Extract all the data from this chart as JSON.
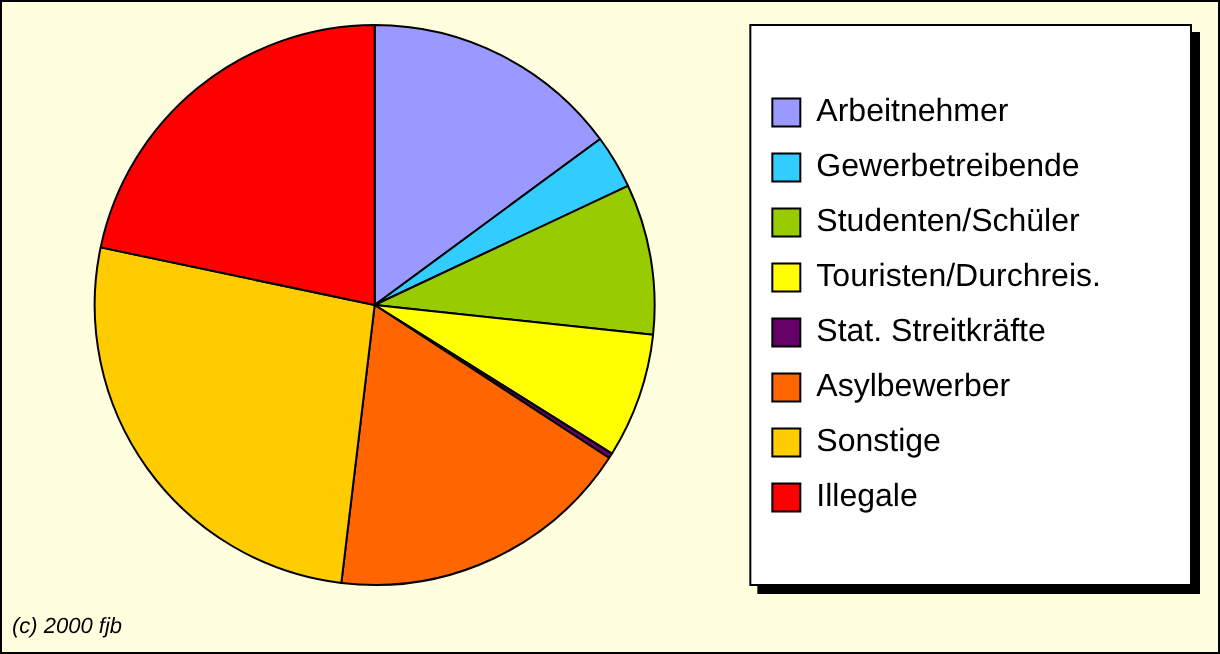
{
  "chart_data": {
    "type": "pie",
    "categories": [
      "Arbeitnehmer",
      "Gewerbetreibende",
      "Studenten/Schüler",
      "Touristen/Durchreis.",
      "Stat. Streitkräfte",
      "Asylbewerber",
      "Sonstige",
      "Illegale"
    ],
    "values": [
      14.9,
      3.1,
      8.7,
      7.2,
      0.3,
      17.7,
      26.4,
      21.7
    ],
    "colors": [
      "#9999ff",
      "#33ccff",
      "#99cc00",
      "#ffff00",
      "#660066",
      "#ff6600",
      "#ffcc00",
      "#ff0000"
    ],
    "legend": "right",
    "annotations": [
      "(c) 2000 fjb"
    ]
  }
}
